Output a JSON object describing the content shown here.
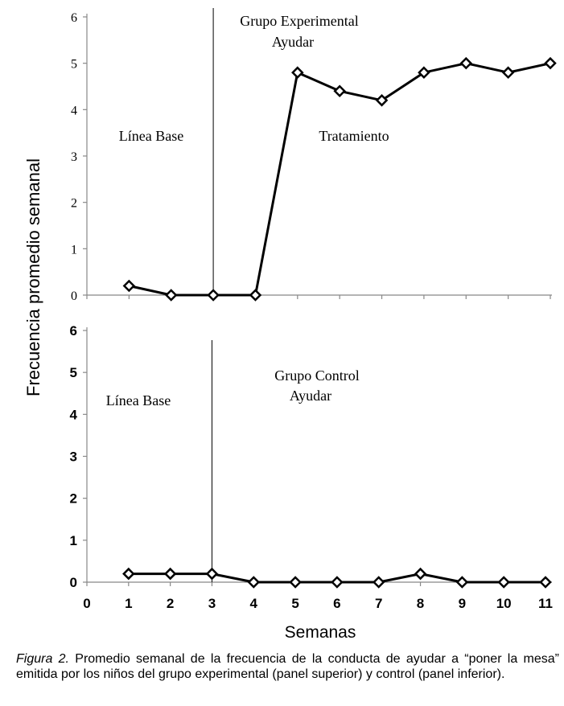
{
  "y_axis_label": "Frecuencia promedio semanal",
  "x_axis_label": "Semanas",
  "caption": {
    "label": "Figura 2.",
    "text": "Promedio semanal de la frecuencia de la conducta de ayudar a “poner la mesa” emitida por los niños del grupo experimental (panel superior) y control (panel inferior)."
  },
  "chart_data": [
    {
      "type": "line",
      "panel": "top",
      "title_lines": [
        "Grupo Experimental",
        "Ayudar"
      ],
      "phase_labels": [
        "Línea Base",
        "Tratamiento"
      ],
      "phase_change_after_week": 3,
      "x_range": [
        0,
        11
      ],
      "ylim": [
        0,
        6
      ],
      "y_ticks": [
        0,
        1,
        2,
        3,
        4,
        5,
        6
      ],
      "x_tick_labels_shown": false,
      "x": [
        1,
        2,
        3,
        4,
        5,
        6,
        7,
        8,
        9,
        10,
        11
      ],
      "values": [
        0.2,
        0,
        0,
        0,
        4.8,
        4.4,
        4.2,
        4.8,
        5.0,
        4.8,
        5.0
      ],
      "marker": "diamond",
      "color": "#000000"
    },
    {
      "type": "line",
      "panel": "bottom",
      "title_lines": [
        "Grupo Control",
        "Ayudar"
      ],
      "phase_labels": [
        "Línea Base"
      ],
      "phase_change_after_week": 3,
      "x_range": [
        0,
        11
      ],
      "ylim": [
        0,
        6
      ],
      "y_ticks": [
        0,
        1,
        2,
        3,
        4,
        5,
        6
      ],
      "x_ticks": [
        0,
        1,
        2,
        3,
        4,
        5,
        6,
        7,
        8,
        9,
        10,
        11
      ],
      "x_tick_labels_shown": true,
      "x": [
        1,
        2,
        3,
        4,
        5,
        6,
        7,
        8,
        9,
        10,
        11
      ],
      "values": [
        0.2,
        0.2,
        0.2,
        0,
        0,
        0,
        0,
        0.2,
        0,
        0,
        0
      ],
      "marker": "diamond",
      "color": "#000000"
    }
  ]
}
